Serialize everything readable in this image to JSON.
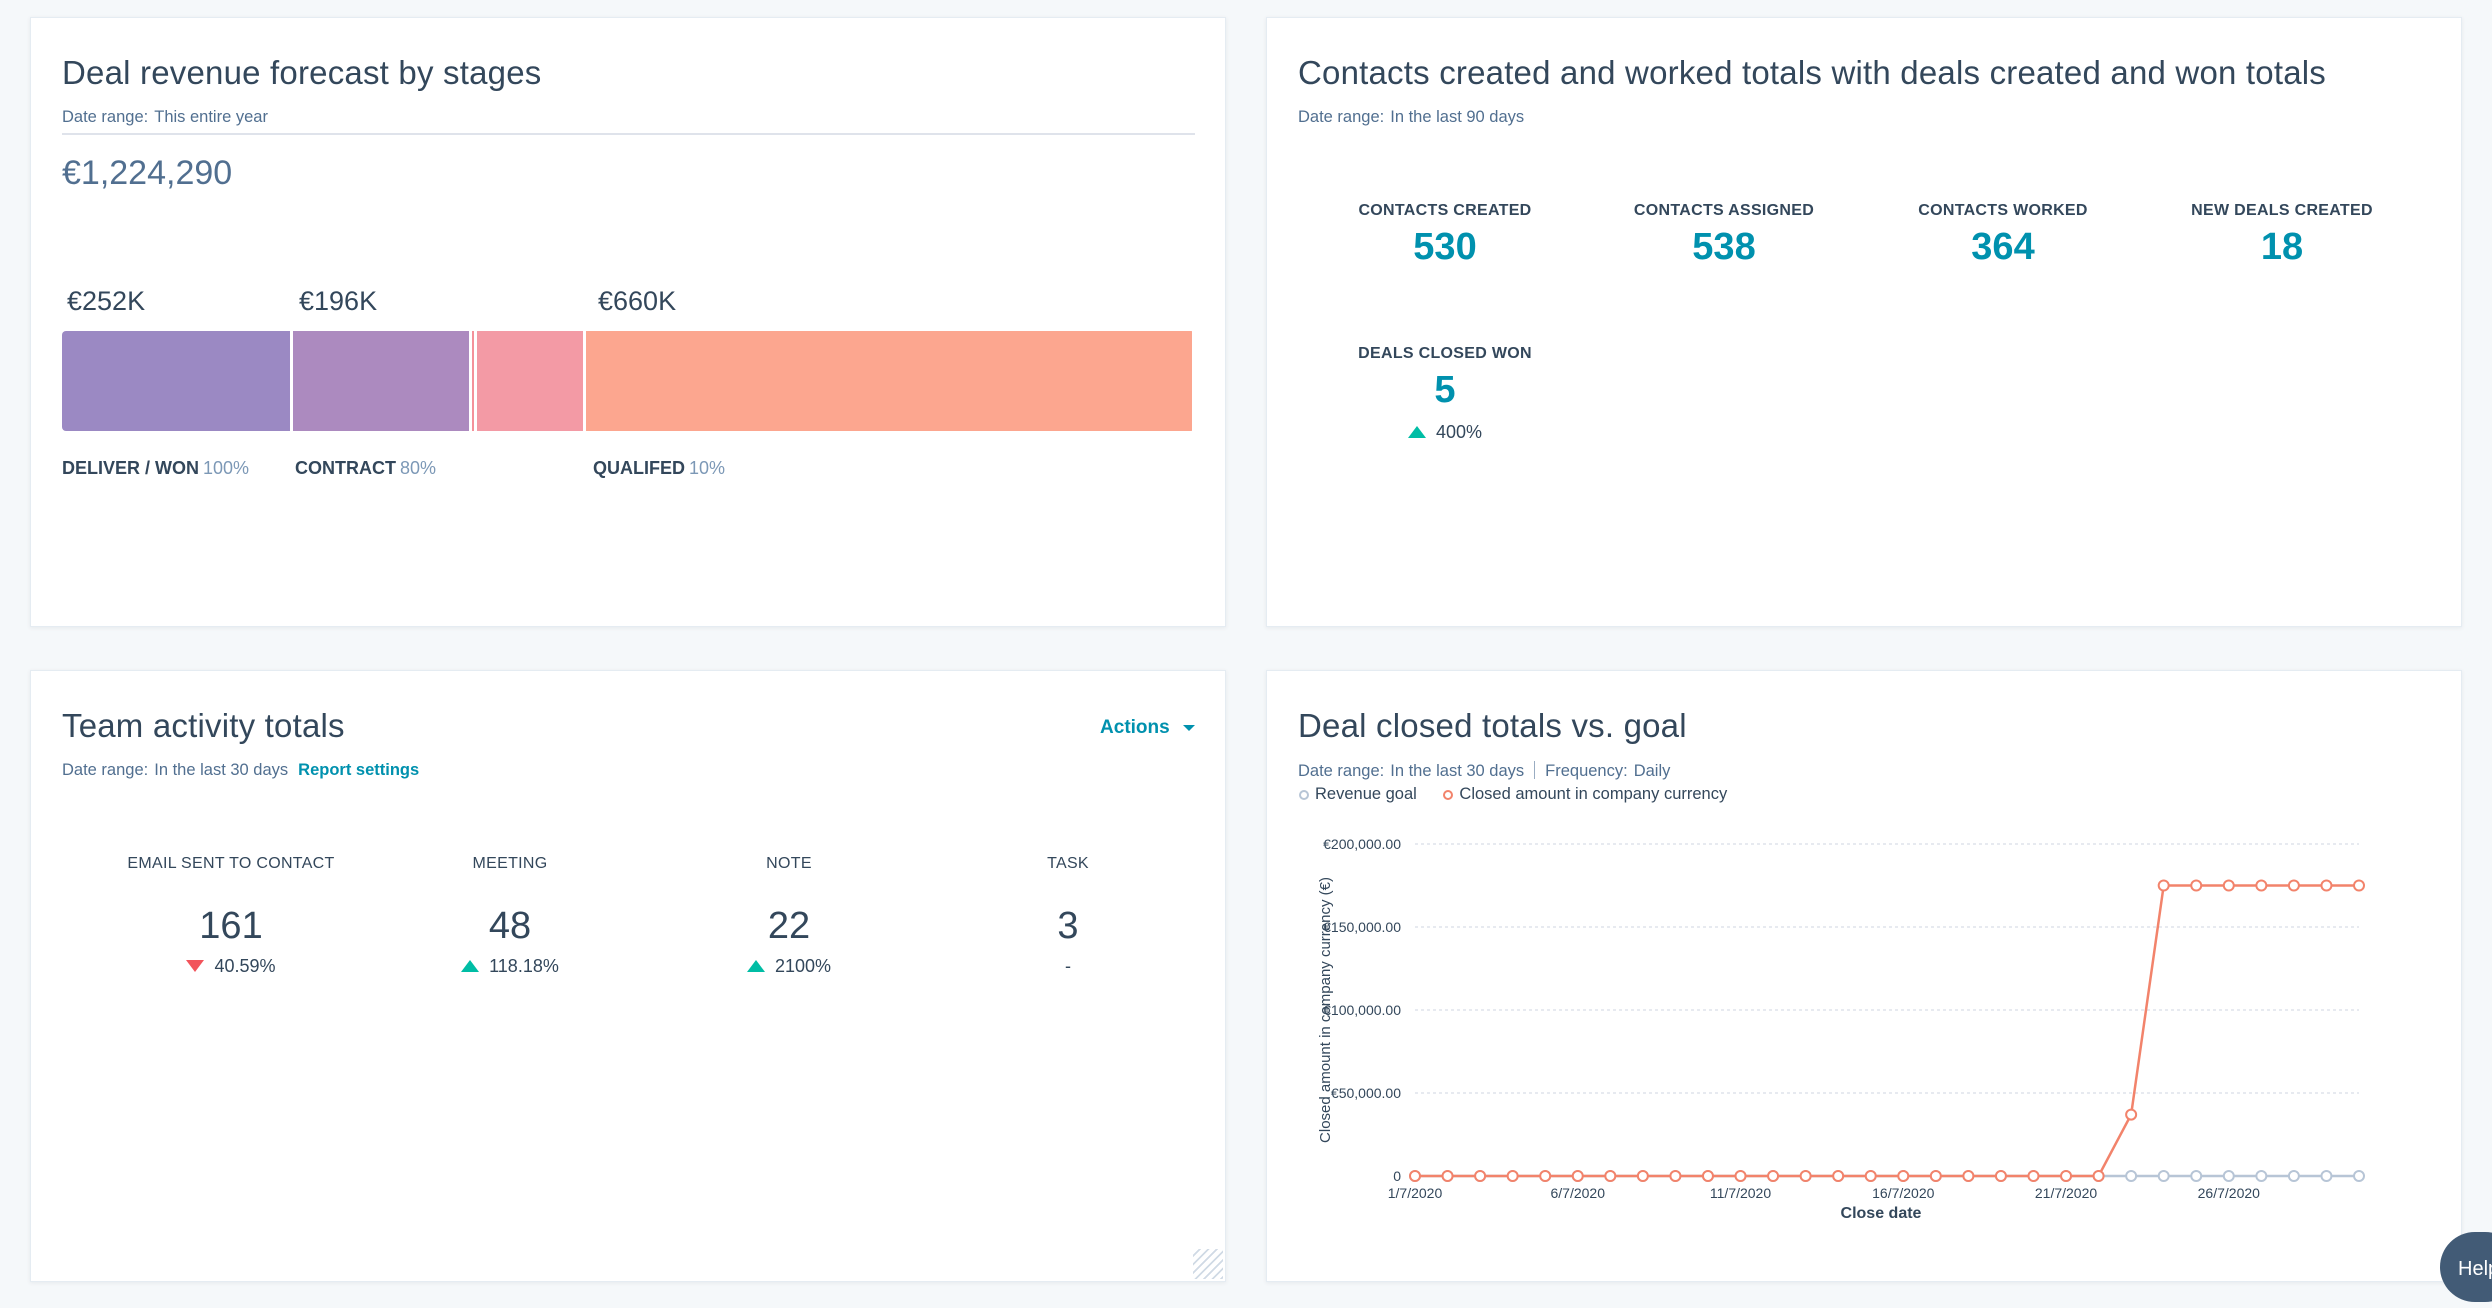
{
  "forecast": {
    "title": "Deal revenue forecast by stages",
    "date_label": "Date range:",
    "date_value": "This entire year",
    "total": "€1,224,290",
    "segments": [
      {
        "amount": "€252K",
        "stage": "DELIVER / WON",
        "pct": "100%",
        "color": "#9b89c3",
        "share": 0.2038
      },
      {
        "amount": "€196K",
        "stage": "CONTRACT",
        "pct": "80%",
        "color": "#ac8abf",
        "share": 0.1585
      },
      {
        "amount": "",
        "stage": "",
        "pct": "",
        "color": "#f4919a",
        "share": 0.004
      },
      {
        "amount": "",
        "stage": "",
        "pct": "",
        "color": "#f39aa5",
        "share": 0.096
      },
      {
        "amount": "€660K",
        "stage": "QUALIFED",
        "pct": "10%",
        "color": "#fca68f",
        "share": 0.5377
      }
    ]
  },
  "contacts": {
    "title": "Contacts created and worked totals with deals created and won totals",
    "date_label": "Date range:",
    "date_value": "In the last 90 days",
    "kpis": [
      {
        "label": "CONTACTS CREATED",
        "value": "530"
      },
      {
        "label": "CONTACTS ASSIGNED",
        "value": "538"
      },
      {
        "label": "CONTACTS WORKED",
        "value": "364"
      },
      {
        "label": "NEW DEALS CREATED",
        "value": "18"
      },
      {
        "label": "DEALS CLOSED WON",
        "value": "5",
        "change": "400%",
        "direction": "up"
      }
    ]
  },
  "team": {
    "title": "Team activity totals",
    "actions": "Actions",
    "date_label": "Date range:",
    "date_value": "In the last 30 days",
    "settings_link": "Report settings",
    "items": [
      {
        "label": "EMAIL SENT TO CONTACT",
        "value": "161",
        "change": "40.59%",
        "direction": "down"
      },
      {
        "label": "MEETING",
        "value": "48",
        "change": "118.18%",
        "direction": "up"
      },
      {
        "label": "NOTE",
        "value": "22",
        "change": "2100%",
        "direction": "up"
      },
      {
        "label": "TASK",
        "value": "3",
        "change": "-",
        "direction": "none"
      }
    ]
  },
  "deals": {
    "title": "Deal closed totals vs. goal",
    "date_label": "Date range:",
    "date_value": "In the last 30 days",
    "freq_label": "Frequency:",
    "freq_value": "Daily",
    "legend": [
      {
        "name": "Revenue goal",
        "color": "#b7c5d6"
      },
      {
        "name": "Closed amount in company currency",
        "color": "#f2836b"
      }
    ]
  },
  "chart_data": {
    "type": "line",
    "title": "Deal closed totals vs. goal",
    "xlabel": "Close date",
    "ylabel": "Closed amount in company currency (€)",
    "ylim": [
      0,
      200000
    ],
    "yticks": [
      "0",
      "€50,000.00",
      "€100,000.00",
      "€150,000.00",
      "€200,000.00"
    ],
    "ytick_values": [
      0,
      50000,
      100000,
      150000,
      200000
    ],
    "x": [
      "1/7/2020",
      "2/7/2020",
      "3/7/2020",
      "4/7/2020",
      "5/7/2020",
      "6/7/2020",
      "7/7/2020",
      "8/7/2020",
      "9/7/2020",
      "10/7/2020",
      "11/7/2020",
      "12/7/2020",
      "13/7/2020",
      "14/7/2020",
      "15/7/2020",
      "16/7/2020",
      "17/7/2020",
      "18/7/2020",
      "19/7/2020",
      "20/7/2020",
      "21/7/2020",
      "22/7/2020",
      "23/7/2020",
      "24/7/2020",
      "25/7/2020",
      "26/7/2020",
      "27/7/2020",
      "28/7/2020",
      "29/7/2020",
      "30/7/2020"
    ],
    "xtick_labels": [
      "1/7/2020",
      "6/7/2020",
      "11/7/2020",
      "16/7/2020",
      "21/7/2020",
      "26/7/2020"
    ],
    "series": [
      {
        "name": "Revenue goal",
        "color": "#b7c5d6",
        "values": [
          0,
          0,
          0,
          0,
          0,
          0,
          0,
          0,
          0,
          0,
          0,
          0,
          0,
          0,
          0,
          0,
          0,
          0,
          0,
          0,
          0,
          0,
          0,
          0,
          0,
          0,
          0,
          0,
          0,
          0
        ]
      },
      {
        "name": "Closed amount in company currency",
        "color": "#f2836b",
        "values": [
          0,
          0,
          0,
          0,
          0,
          0,
          0,
          0,
          0,
          0,
          0,
          0,
          0,
          0,
          0,
          0,
          0,
          0,
          0,
          0,
          0,
          0,
          37000,
          175000,
          175000,
          175000,
          175000,
          175000,
          175000,
          175000
        ]
      }
    ],
    "grid": true,
    "legend_position": "top-left"
  },
  "help": "Help"
}
